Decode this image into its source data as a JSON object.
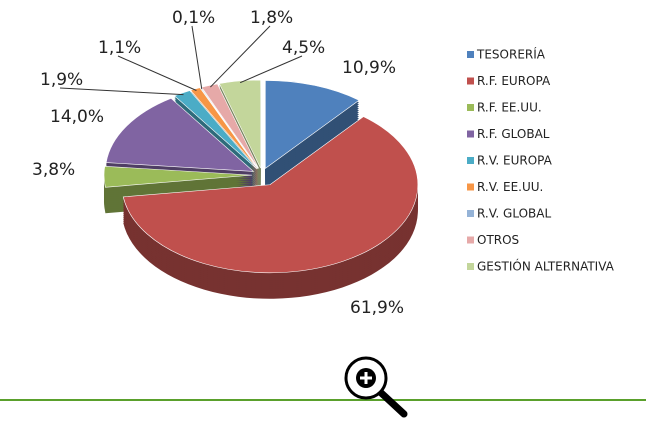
{
  "chart_data": {
    "type": "pie",
    "categories": [
      "TESORERÍA",
      "R.F. EUROPA",
      "R.F. EE.UU.",
      "R.F. GLOBAL",
      "R.V. EUROPA",
      "R.V. EE.UU.",
      "R.V. GLOBAL",
      "OTROS",
      "GESTIÓN ALTERNATIVA"
    ],
    "values": [
      10.9,
      61.9,
      3.8,
      14.0,
      1.9,
      1.1,
      0.1,
      1.8,
      4.5
    ],
    "value_labels": [
      "10,9%",
      "61,9%",
      "3,8%",
      "14,0%",
      "1,9%",
      "1,1%",
      "0,1%",
      "1,8%",
      "4,5%"
    ],
    "colors": [
      "#4f81bd",
      "#c0504d",
      "#9bbb59",
      "#8064a2",
      "#4bacc6",
      "#f79646",
      "#95b3d7",
      "#e6a9a8",
      "#c3d69b"
    ],
    "legend": "right"
  }
}
